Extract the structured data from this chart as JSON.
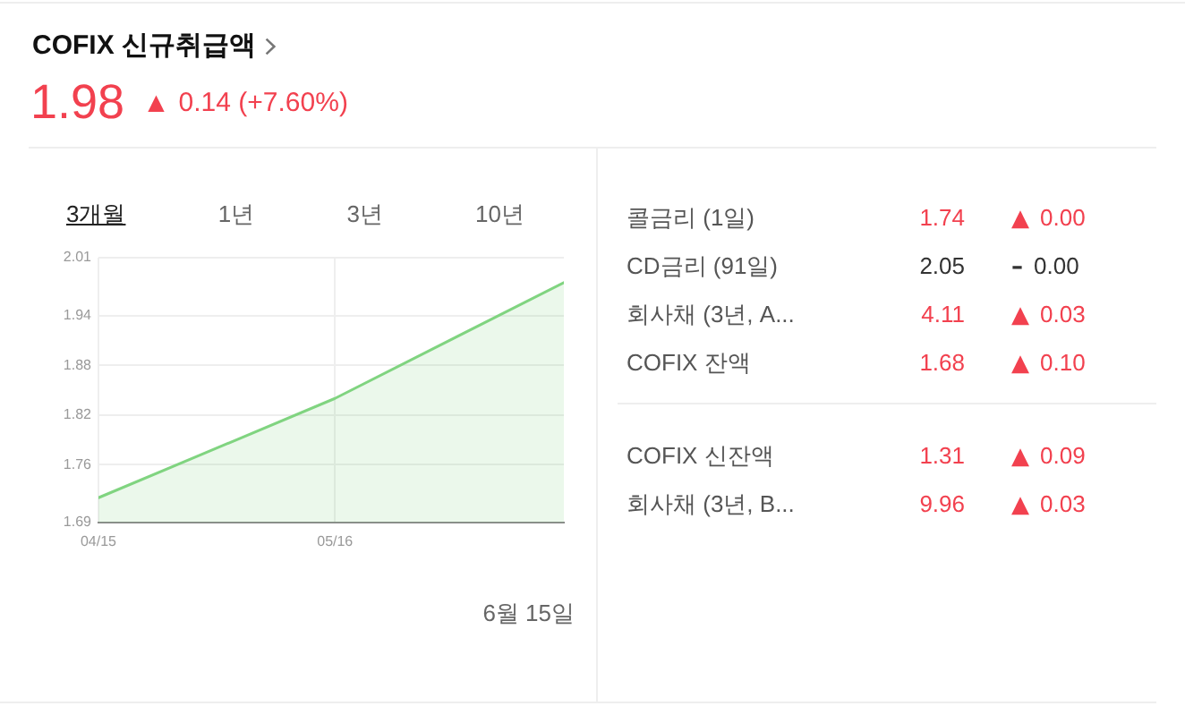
{
  "chart_data": [
    {
      "type": "area",
      "title": "COFIX 신규취급액",
      "subtitle": "1.98 ▲ 0.14 (+7.60%)",
      "x": [
        "--04-15",
        "--05-16",
        "--06-15"
      ],
      "series": [
        {
          "color": "#80d480",
          "values": [
            1.72,
            1.84,
            1.98
          ]
        }
      ],
      "xlim": [
        "--04-15",
        "--06-15"
      ],
      "xticks": [
        {
          "value": "--04-15",
          "label": "04/15"
        },
        {
          "value": "--05-16",
          "label": "05/16"
        }
      ],
      "ylim": [
        1.69,
        2.01
      ],
      "yticks": [
        1.69,
        1.76,
        1.82,
        1.88,
        1.94,
        2.01
      ],
      "grid": true,
      "marker": "none",
      "annotations": [
        "3개월",
        "1년",
        "3년",
        "10년",
        "6월 15일"
      ]
    },
    {
      "type": "other",
      "annotations": [
        "콜금리 (1일)",
        "1.74",
        "▲ 0.00",
        "CD금리 (91일)",
        "2.05",
        "– 0.00",
        "회사채 (3년, A...",
        "4.11",
        "▲ 0.03",
        "COFIX 잔액",
        "1.68",
        "▲ 0.10"
      ],
      "colors": [
        "#f2414f",
        "#333333",
        "#f2414f",
        "#f2414f"
      ]
    },
    {
      "type": "other",
      "annotations": [
        "COFIX 신잔액",
        "1.31",
        "▲ 0.09",
        "회사채 (3년, B...",
        "9.96",
        "▲ 0.03"
      ],
      "colors": [
        "#f2414f",
        "#f2414f"
      ]
    }
  ]
}
